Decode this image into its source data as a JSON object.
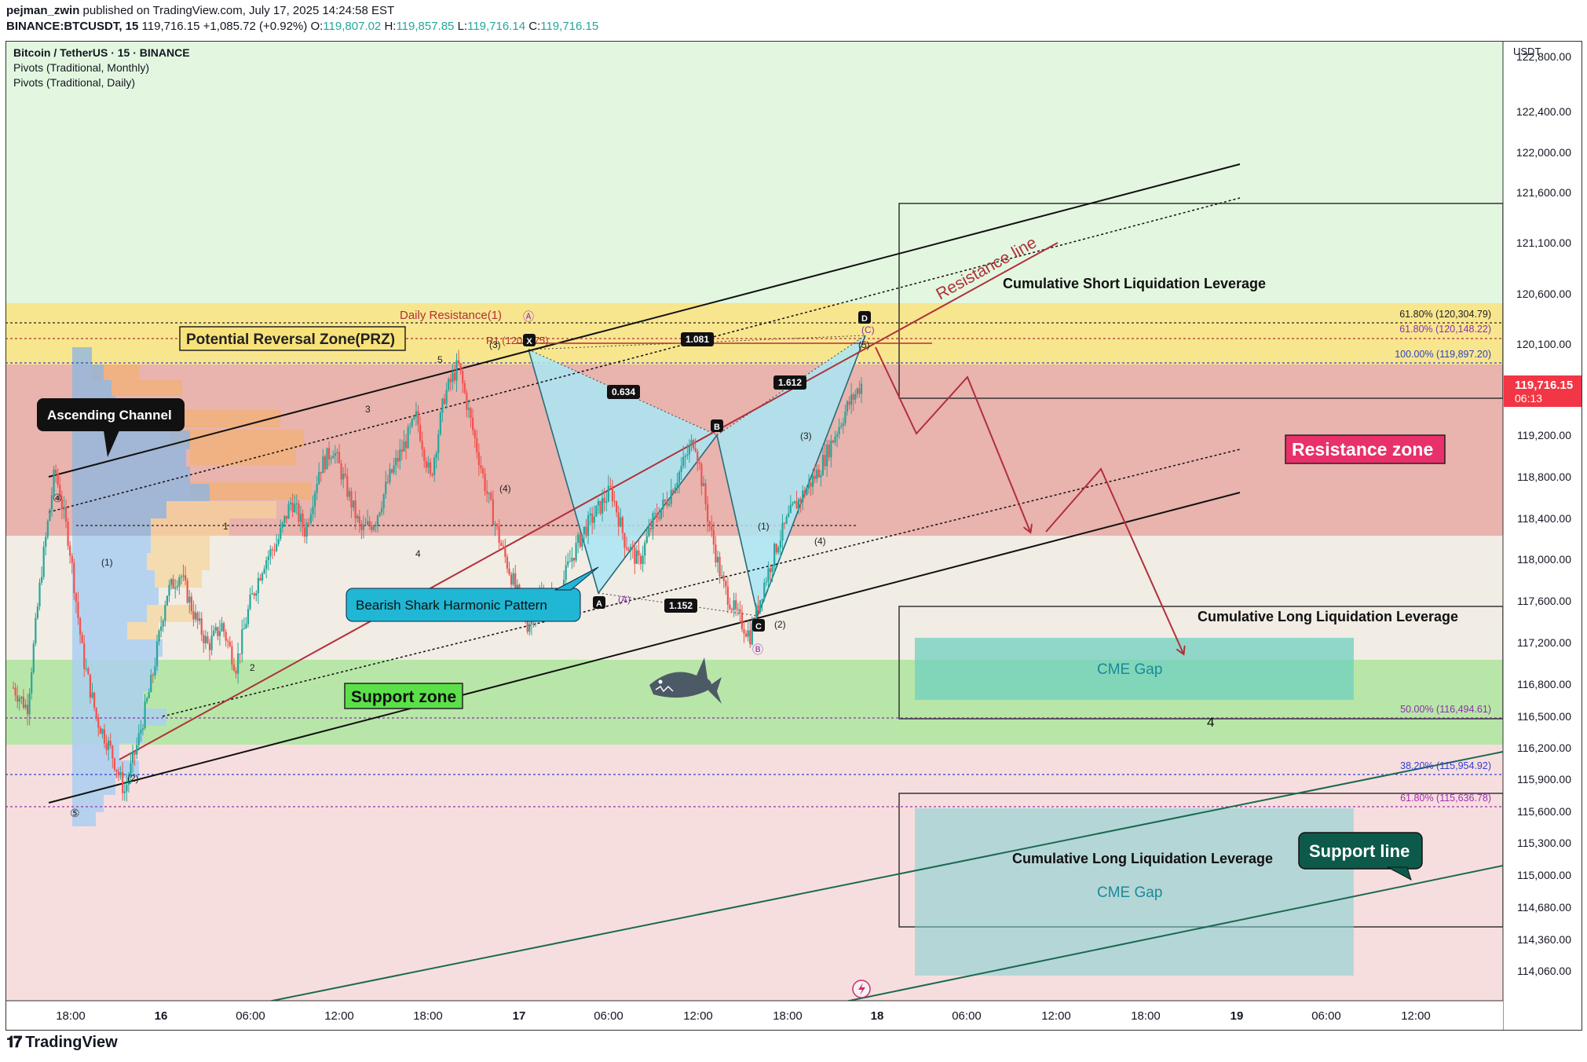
{
  "header": {
    "line1_user": "pejman_zwin",
    "line1_rest": "published on TradingView.com, July 17, 2025 14:24:58 EST",
    "symbol": "BINANCE:BTCUSDT, 15",
    "last": "119,716.15",
    "change": "+1,085.72 (+0.92%)",
    "o_label": "O:",
    "o": "119,807.02",
    "h_label": "H:",
    "h": "119,857.85",
    "l_label": "L:",
    "l": "119,716.14",
    "c_label": "C:",
    "c": "119,716.15"
  },
  "legend": {
    "title": "Bitcoin / TetherUS · 15 · BINANCE",
    "ind1": "Pivots (Traditional, Monthly)",
    "ind2": "Pivots (Traditional, Daily)"
  },
  "price_axis": {
    "currency": "USDT",
    "ticks": [
      "122,800.00",
      "122,400.00",
      "122,000.00",
      "121,600.00",
      "121,100.00",
      "120,600.00",
      "120,100.00",
      "119,200.00",
      "118,800.00",
      "118,400.00",
      "118,000.00",
      "117,600.00",
      "117,200.00",
      "116,800.00",
      "116,500.00",
      "116,200.00",
      "115,900.00",
      "115,600.00",
      "115,300.00",
      "115,000.00",
      "114,680.00",
      "114,360.00",
      "114,060.00"
    ],
    "current_price": "119,716.15",
    "countdown": "06:13"
  },
  "time_axis": {
    "ticks": [
      "18:00",
      "16",
      "06:00",
      "12:00",
      "18:00",
      "17",
      "06:00",
      "12:00",
      "18:00",
      "18",
      "06:00",
      "12:00",
      "18:00",
      "19",
      "06:00",
      "12:00"
    ]
  },
  "annotations": {
    "prz": "Potential Reversal Zone(PRZ)",
    "daily_resistance": "Daily Resistance(1)",
    "r1": "R1 (120 2.75)",
    "ascending_channel": "Ascending Channel",
    "shark_pattern": "Bearish Shark Harmonic Pattern",
    "support_zone": "Support zone",
    "resistance_zone": "Resistance zone",
    "resistance_line": "Resistance line",
    "support_line": "Support line",
    "short_liq": "Cumulative Short Liquidation Leverage",
    "long_liq_1": "Cumulative Long Liquidation Leverage",
    "long_liq_2": "Cumulative Long Liquidation Leverage",
    "cme_gap_1": "CME Gap",
    "cme_gap_2": "CME Gap",
    "fib_618_a": "61.80% (120,304.79)",
    "fib_618_b": "61.80% (120,148.22)",
    "fib_100": "100.00% (119,897.20)",
    "fib_500": "50.00% (116,494.61)",
    "fib_382": "38.20% (115,954.92)",
    "fib_618_c": "61.80% (115,636.78)",
    "ratio_0634": "0.634",
    "ratio_1081": "1.081",
    "ratio_1612": "1.612",
    "ratio_1152": "1.152",
    "pt_x": "X",
    "pt_a": "A",
    "pt_b": "B",
    "pt_c": "C",
    "pt_d": "D",
    "wave_four": "4",
    "elliott": [
      "④",
      "⑤",
      "(1)",
      "(2)",
      "1",
      "2",
      "3",
      "4",
      "5",
      "(3)",
      "(4)",
      "(A)",
      "Ⓐ",
      "Ⓑ",
      "(3)",
      "(4)",
      "(1)",
      "(2)",
      "(5)",
      "(C)"
    ]
  },
  "colors": {
    "resistance_zone": "#e8a09a",
    "support_zone": "#98e08a",
    "prz": "#f5e66b",
    "harmonic": "#a9e6f5",
    "cme_gap": "#7fd4c8",
    "resistance_red": "#b0303a",
    "candle_up": "#26a69a",
    "candle_down": "#ef5350",
    "price_label": "#f23645"
  },
  "chart_data": {
    "type": "candlestick",
    "title": "Bitcoin / TetherUS · 15 · BINANCE",
    "ylim": [
      113900,
      122950
    ],
    "y_unit": "USDT",
    "current_price": 119716.15,
    "ohlc_last": {
      "open": 119807.02,
      "high": 119857.85,
      "low": 119716.14,
      "close": 119716.15
    },
    "change": 1085.72,
    "change_pct": 0.92,
    "zones": [
      {
        "name": "Resistance zone",
        "from": 118180,
        "to": 119880
      },
      {
        "name": "Potential Reversal Zone(PRZ)",
        "from": 119880,
        "to": 120490
      },
      {
        "name": "Support zone",
        "from": 116260,
        "to": 117050
      }
    ],
    "fib_levels": [
      120304.79,
      120148.22,
      119897.2,
      116494.61,
      115954.92,
      115636.78
    ],
    "path_closes": [
      116800,
      116600,
      117900,
      118900,
      118200,
      117100,
      116500,
      116200,
      115800,
      116300,
      116900,
      117700,
      117900,
      117500,
      117200,
      117400,
      117000,
      117600,
      118000,
      118200,
      118600,
      118300,
      118900,
      119100,
      118700,
      118300,
      118400,
      118800,
      119100,
      119400,
      118800,
      119600,
      119900,
      119300,
      118700,
      118200,
      117800,
      117400,
      117700,
      117600,
      118000,
      118300,
      118500,
      118700,
      118200,
      118000,
      118400,
      118600,
      118900,
      119200,
      118400,
      117800,
      117500,
      117300,
      117800,
      118200,
      118500,
      118700,
      118900,
      119200,
      119500,
      119716
    ]
  }
}
